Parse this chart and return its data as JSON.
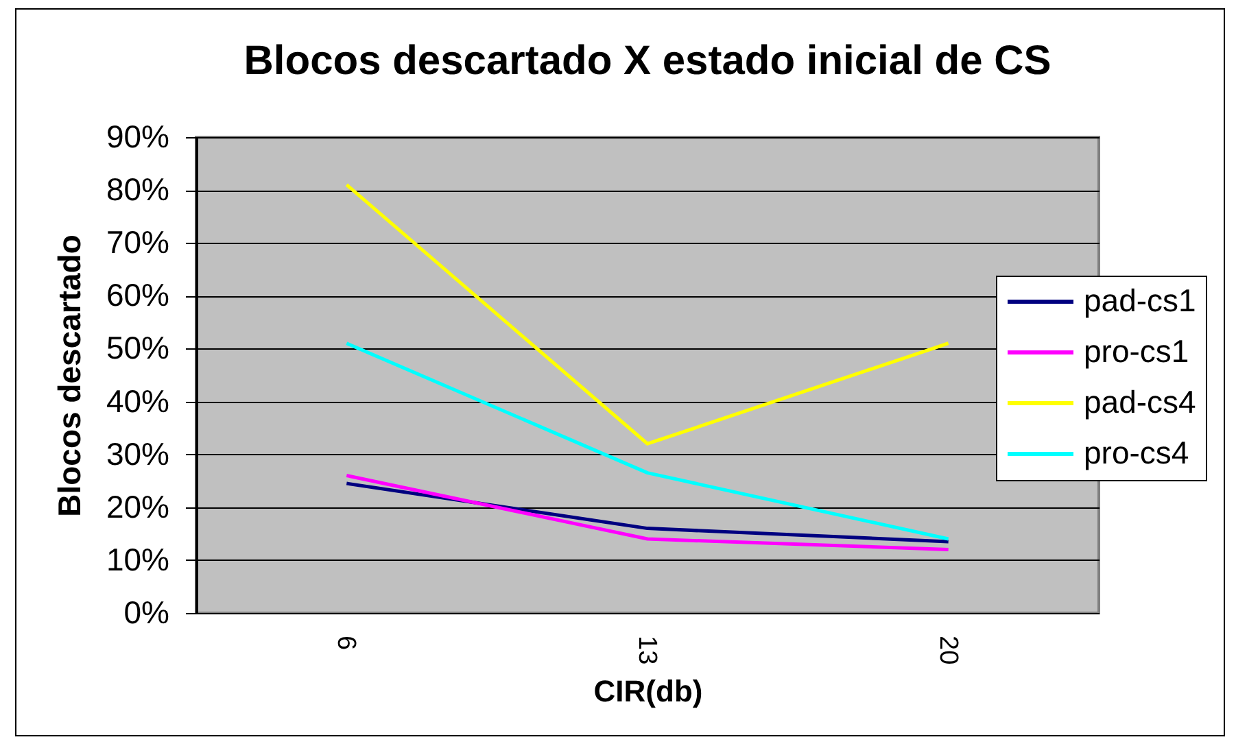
{
  "chart_data": {
    "type": "line",
    "title": "Blocos descartado X estado inicial de CS",
    "xlabel": "CIR(db)",
    "ylabel": "Blocos descartado",
    "categories": [
      "6",
      "13",
      "20"
    ],
    "series": [
      {
        "name": "pad-cs1",
        "color": "#000080",
        "values": [
          24.5,
          16,
          13.5
        ]
      },
      {
        "name": "pro-cs1",
        "color": "#ff00ff",
        "values": [
          26,
          14,
          12
        ]
      },
      {
        "name": "pad-cs4",
        "color": "#ffff00",
        "values": [
          81,
          32,
          51
        ]
      },
      {
        "name": "pro-cs4",
        "color": "#00ffff",
        "values": [
          51,
          26.5,
          14
        ]
      }
    ],
    "ylim": [
      0,
      90
    ],
    "yticks": [
      {
        "value": 0,
        "label": "0%"
      },
      {
        "value": 10,
        "label": "10%"
      },
      {
        "value": 20,
        "label": "20%"
      },
      {
        "value": 30,
        "label": "30%"
      },
      {
        "value": 40,
        "label": "40%"
      },
      {
        "value": 50,
        "label": "50%"
      },
      {
        "value": 60,
        "label": "60%"
      },
      {
        "value": 70,
        "label": "70%"
      },
      {
        "value": 80,
        "label": "80%"
      },
      {
        "value": 90,
        "label": "90%"
      }
    ],
    "grid": "y",
    "legend": "right"
  }
}
